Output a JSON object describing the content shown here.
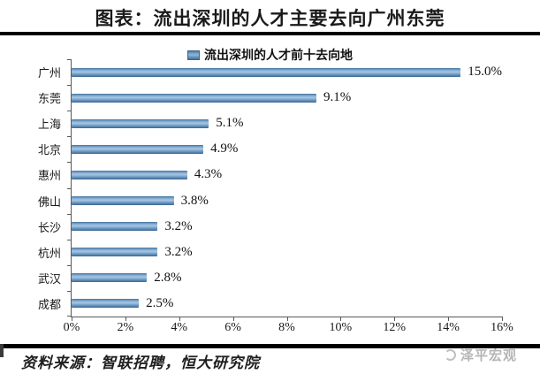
{
  "header": {
    "title": "图表：流出深圳的人才主要去向广州东莞"
  },
  "legend": {
    "label": "流出深圳的人才前十去向地",
    "marker_color": "#5b8cb8"
  },
  "chart_data": {
    "type": "bar",
    "orientation": "horizontal",
    "title": "流出深圳的人才前十去向地",
    "categories": [
      "广州",
      "东莞",
      "上海",
      "北京",
      "惠州",
      "佛山",
      "长沙",
      "杭州",
      "武汉",
      "成都"
    ],
    "values": [
      15.0,
      9.1,
      5.1,
      4.9,
      4.3,
      3.8,
      3.2,
      3.2,
      2.8,
      2.5
    ],
    "value_labels": [
      "15.0%",
      "9.1%",
      "5.1%",
      "4.9%",
      "4.3%",
      "3.8%",
      "3.2%",
      "3.2%",
      "2.8%",
      "2.5%"
    ],
    "x_ticks": [
      "0%",
      "2%",
      "4%",
      "6%",
      "8%",
      "10%",
      "12%",
      "14%",
      "16%"
    ],
    "xlim": [
      0,
      16
    ],
    "xlabel": "",
    "ylabel": "",
    "grid": false,
    "legend_position": "top",
    "bar_color": "#6d9bc3"
  },
  "footer": {
    "source": "资料来源：智联招聘，恒大研究院",
    "watermark": "泽平宏观"
  }
}
